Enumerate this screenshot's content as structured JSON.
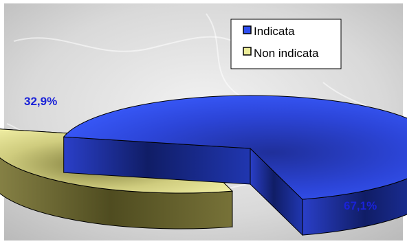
{
  "chart_data": {
    "type": "pie",
    "three_d": true,
    "exploded": true,
    "legend_position": "top-right",
    "slices": [
      {
        "label": "Indicata",
        "value": 67.1,
        "value_label": "67,1%",
        "color": "#2f4ef0"
      },
      {
        "label": "Non indicata",
        "value": 32.9,
        "value_label": "32,9%",
        "color": "#ecec98"
      }
    ]
  }
}
